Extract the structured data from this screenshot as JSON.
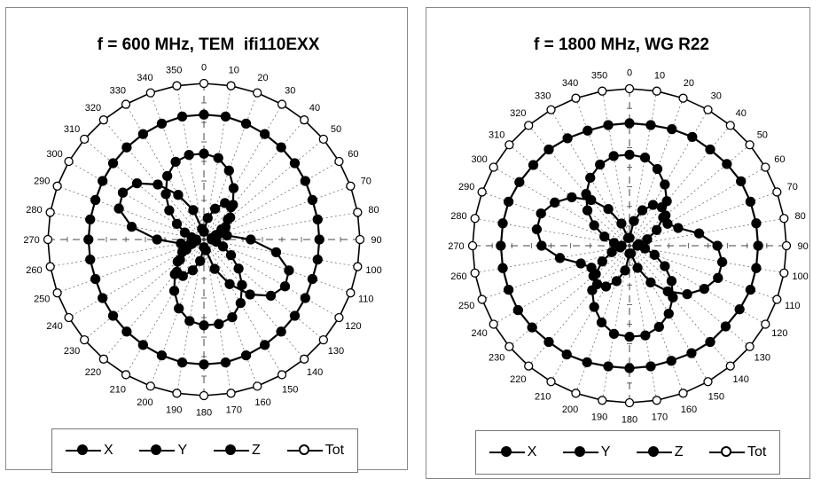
{
  "colors": {
    "series": "#000000",
    "tot_fill": "#ffffff",
    "grid": "#444444"
  },
  "chart_data": [
    {
      "type": "polar",
      "title": "f = 600 MHz, TEM  ifi110EXX",
      "angle_labels": [
        "0",
        "10",
        "20",
        "30",
        "40",
        "50",
        "60",
        "70",
        "80",
        "90",
        "100",
        "110",
        "120",
        "130",
        "140",
        "150",
        "160",
        "170",
        "180",
        "190",
        "200",
        "210",
        "220",
        "230",
        "240",
        "250",
        "260",
        "270",
        "280",
        "290",
        "300",
        "310",
        "320",
        "330",
        "340",
        "350"
      ],
      "r_max": 1.0,
      "grid": true,
      "legend_position": "bottom",
      "series": [
        {
          "name": "X",
          "marker": "filled",
          "radius": [
            0.05,
            0.14,
            0.21,
            0.27,
            0.27,
            0.22,
            0.16,
            0.1,
            0.15,
            0.3,
            0.47,
            0.58,
            0.6,
            0.56,
            0.46,
            0.33,
            0.2,
            0.07,
            0.05,
            0.14,
            0.21,
            0.27,
            0.27,
            0.22,
            0.16,
            0.1,
            0.15,
            0.3,
            0.47,
            0.58,
            0.6,
            0.56,
            0.46,
            0.33,
            0.2,
            0.07
          ]
        },
        {
          "name": "Y",
          "marker": "filled",
          "radius": [
            0.55,
            0.53,
            0.47,
            0.38,
            0.29,
            0.2,
            0.13,
            0.08,
            0.05,
            0.05,
            0.08,
            0.13,
            0.2,
            0.29,
            0.38,
            0.47,
            0.53,
            0.55,
            0.55,
            0.53,
            0.47,
            0.38,
            0.29,
            0.2,
            0.13,
            0.08,
            0.05,
            0.05,
            0.08,
            0.13,
            0.2,
            0.29,
            0.38,
            0.47,
            0.53,
            0.55
          ]
        },
        {
          "name": "Z",
          "marker": "filled",
          "radius": [
            0.8,
            0.8,
            0.79,
            0.78,
            0.77,
            0.76,
            0.75,
            0.74,
            0.74,
            0.74,
            0.74,
            0.74,
            0.75,
            0.76,
            0.77,
            0.78,
            0.79,
            0.8,
            0.8,
            0.8,
            0.79,
            0.78,
            0.77,
            0.76,
            0.75,
            0.74,
            0.74,
            0.74,
            0.74,
            0.74,
            0.75,
            0.76,
            0.77,
            0.78,
            0.79,
            0.8
          ]
        },
        {
          "name": "Tot",
          "marker": "hollow",
          "radius": [
            1,
            1,
            1,
            1,
            1,
            1,
            1,
            1,
            1,
            1,
            1,
            1,
            1,
            1,
            1,
            1,
            1,
            1,
            1,
            1,
            1,
            1,
            1,
            1,
            1,
            1,
            1,
            1,
            1,
            1,
            1,
            1,
            1,
            1,
            1,
            1
          ]
        }
      ]
    },
    {
      "type": "polar",
      "title": "f = 1800 MHz, WG R22",
      "angle_labels": [
        "0",
        "10",
        "20",
        "30",
        "40",
        "50",
        "60",
        "70",
        "80",
        "90",
        "100",
        "110",
        "120",
        "130",
        "140",
        "150",
        "160",
        "170",
        "180",
        "190",
        "200",
        "210",
        "220",
        "230",
        "240",
        "250",
        "260",
        "270",
        "280",
        "290",
        "300",
        "310",
        "320",
        "330",
        "340",
        "350"
      ],
      "r_max": 1.0,
      "grid": true,
      "legend_position": "bottom",
      "series": [
        {
          "name": "X",
          "marker": "filled",
          "radius": [
            0.05,
            0.16,
            0.24,
            0.3,
            0.32,
            0.3,
            0.28,
            0.33,
            0.45,
            0.56,
            0.6,
            0.6,
            0.55,
            0.48,
            0.38,
            0.27,
            0.15,
            0.05,
            0.05,
            0.16,
            0.24,
            0.3,
            0.32,
            0.3,
            0.28,
            0.33,
            0.45,
            0.56,
            0.6,
            0.6,
            0.55,
            0.48,
            0.38,
            0.27,
            0.15,
            0.05
          ]
        },
        {
          "name": "Y",
          "marker": "filled",
          "radius": [
            0.58,
            0.57,
            0.52,
            0.45,
            0.37,
            0.28,
            0.2,
            0.12,
            0.06,
            0.05,
            0.1,
            0.17,
            0.26,
            0.35,
            0.43,
            0.5,
            0.55,
            0.58,
            0.58,
            0.57,
            0.52,
            0.45,
            0.37,
            0.28,
            0.2,
            0.12,
            0.06,
            0.05,
            0.1,
            0.17,
            0.26,
            0.35,
            0.43,
            0.5,
            0.55,
            0.58
          ]
        },
        {
          "name": "Z",
          "marker": "filled",
          "radius": [
            0.78,
            0.78,
            0.79,
            0.8,
            0.8,
            0.81,
            0.82,
            0.82,
            0.82,
            0.82,
            0.82,
            0.82,
            0.81,
            0.8,
            0.8,
            0.79,
            0.78,
            0.78,
            0.78,
            0.78,
            0.79,
            0.8,
            0.8,
            0.81,
            0.82,
            0.82,
            0.82,
            0.82,
            0.82,
            0.82,
            0.81,
            0.8,
            0.8,
            0.79,
            0.78,
            0.78
          ]
        },
        {
          "name": "Tot",
          "marker": "hollow",
          "radius": [
            1,
            1,
            1,
            1,
            1,
            1,
            1,
            1,
            1,
            1,
            1,
            1,
            1,
            1,
            1,
            1,
            1,
            1,
            1,
            1,
            1,
            1,
            1,
            1,
            1,
            1,
            1,
            1,
            1,
            1,
            1,
            1,
            1,
            1,
            1,
            1
          ]
        }
      ]
    }
  ]
}
